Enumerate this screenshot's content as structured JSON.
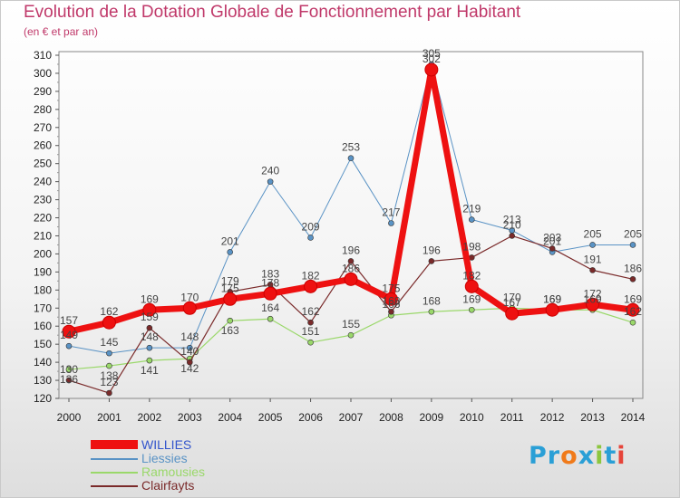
{
  "header": {
    "title": "Evolution de la Dotation Globale de Fonctionnement par Habitant",
    "subtitle": "(en € et par an)"
  },
  "logo": {
    "text": "Proxiti",
    "letters": [
      {
        "ch": "P",
        "color": "#2a9fd6"
      },
      {
        "ch": "r",
        "color": "#2a9fd6"
      },
      {
        "ch": "o",
        "color": "#f07a1a"
      },
      {
        "ch": "x",
        "color": "#2a9fd6"
      },
      {
        "ch": "i",
        "color": "#8cc63f"
      },
      {
        "ch": "t",
        "color": "#2a9fd6"
      },
      {
        "ch": "i",
        "color": "#e6443a"
      }
    ]
  },
  "chart_data": {
    "type": "line",
    "title": "Evolution de la Dotation Globale de Fonctionnement par Habitant",
    "subtitle": "(en € et par an)",
    "categories": [
      "2000",
      "2001",
      "2002",
      "2003",
      "2004",
      "2005",
      "2006",
      "2007",
      "2008",
      "2009",
      "2010",
      "2011",
      "2012",
      "2013",
      "2014"
    ],
    "ylim": [
      120,
      310
    ],
    "yticks": [
      120,
      130,
      140,
      150,
      160,
      170,
      180,
      190,
      200,
      210,
      220,
      230,
      240,
      250,
      260,
      270,
      280,
      290,
      300,
      310
    ],
    "grid": false,
    "legend_position": "bottom-left",
    "series": [
      {
        "name": "Liessies",
        "color": "#5a93c5",
        "width": 1,
        "values": [
          149,
          145,
          148,
          148,
          201,
          240,
          209,
          253,
          217,
          305,
          219,
          213,
          201,
          205,
          205
        ],
        "labels": [
          "149",
          "145",
          "148",
          "148",
          "201",
          "240",
          "209",
          "253",
          "217",
          "305",
          "219",
          "213",
          "201",
          "205",
          "205"
        ]
      },
      {
        "name": "Ramousies",
        "color": "#9ad86a",
        "width": 1.2,
        "values": [
          136,
          138,
          141,
          142,
          163,
          164,
          151,
          155,
          166,
          168,
          169,
          170,
          169,
          169,
          162
        ],
        "labels": [
          "136",
          "138",
          "141",
          "142",
          "163",
          "164",
          "151",
          "155",
          "166",
          "168",
          "169",
          "170",
          "169",
          "169",
          "162"
        ]
      },
      {
        "name": "Clairfayts",
        "color": "#7a2a2a",
        "width": 1.2,
        "values": [
          130,
          123,
          159,
          140,
          179,
          183,
          162,
          196,
          168,
          196,
          198,
          210,
          203,
          191,
          186
        ],
        "labels": [
          "130",
          "123",
          "159",
          "140",
          "179",
          "183",
          "162",
          "196",
          "168",
          "196",
          "198",
          "210",
          "203",
          "191",
          "186"
        ]
      },
      {
        "name": "WILLIES",
        "color": "#ee1111",
        "width": 7,
        "values": [
          157,
          162,
          169,
          170,
          175,
          178,
          182,
          186,
          175,
          302,
          182,
          167,
          169,
          172,
          169
        ],
        "labels": [
          "157",
          "162",
          "169",
          "170",
          "175",
          "178",
          "182",
          "186",
          "175",
          "302",
          "182",
          "167",
          "169",
          "172",
          "169"
        ]
      }
    ]
  }
}
